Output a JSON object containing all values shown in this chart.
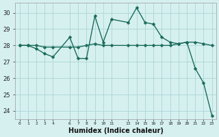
{
  "xlabel": "Humidex (Indice chaleur)",
  "ylabel": "",
  "bg_color": "#d6f0f0",
  "grid_color": "#b0d8d8",
  "line_color": "#1a6b5a",
  "x_line1": [
    0,
    1,
    2,
    3,
    4,
    6,
    7,
    8,
    9,
    10,
    11,
    13,
    14,
    15,
    16,
    17,
    18,
    19,
    20,
    21,
    22,
    23
  ],
  "y_line1": [
    28.0,
    28.0,
    27.8,
    27.5,
    27.3,
    28.5,
    27.2,
    27.2,
    29.8,
    28.2,
    29.6,
    29.4,
    30.3,
    29.4,
    29.3,
    28.5,
    28.2,
    28.1,
    28.2,
    26.6,
    25.7,
    23.7
  ],
  "x_line2": [
    0,
    1,
    2,
    3,
    4,
    6,
    7,
    8,
    9,
    10,
    11,
    13,
    14,
    15,
    16,
    17,
    18,
    19,
    20,
    21,
    22,
    23
  ],
  "y_line2": [
    28.0,
    28.0,
    28.0,
    27.9,
    27.9,
    27.9,
    27.9,
    28.0,
    28.1,
    28.0,
    28.0,
    28.0,
    28.0,
    28.0,
    28.0,
    28.0,
    28.0,
    28.1,
    28.2,
    28.2,
    28.1,
    28.0
  ],
  "ylim": [
    23.5,
    30.6
  ],
  "yticks": [
    24,
    25,
    26,
    27,
    28,
    29,
    30
  ],
  "xticks": [
    0,
    1,
    2,
    3,
    4,
    6,
    7,
    8,
    9,
    10,
    11,
    13,
    14,
    15,
    16,
    17,
    18,
    19,
    20,
    21,
    22,
    23
  ],
  "xticklabels": [
    "0",
    "1",
    "2",
    "3",
    "4",
    "6",
    "7",
    "8",
    "9",
    "10",
    "11",
    "13",
    "14",
    "15",
    "16",
    "17",
    "18",
    "19",
    "20",
    "21",
    "22",
    "23"
  ],
  "marker": "D",
  "markersize": 2.5,
  "linewidth": 1.0
}
